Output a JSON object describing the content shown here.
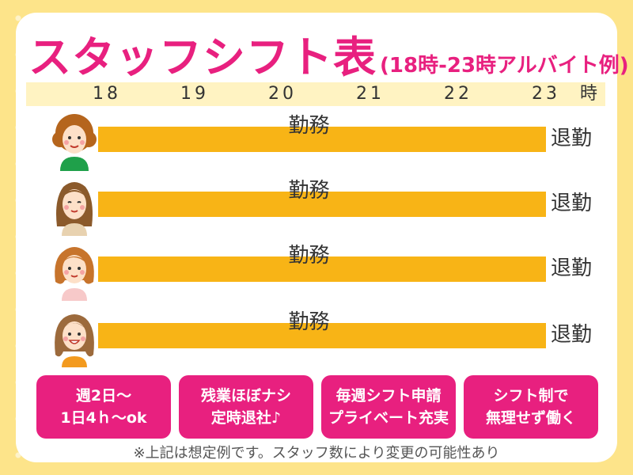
{
  "title": {
    "main": "スタッフシフト表",
    "sub": "(18時-23時アルバイト例)"
  },
  "timeline": {
    "ticks": [
      "18",
      "19",
      "20",
      "21",
      "22",
      "23"
    ],
    "unit": "時"
  },
  "rows": [
    {
      "bar_label": "勤務",
      "end_label": "退勤"
    },
    {
      "bar_label": "勤務",
      "end_label": "退勤"
    },
    {
      "bar_label": "勤務",
      "end_label": "退勤"
    },
    {
      "bar_label": "勤務",
      "end_label": "退勤"
    }
  ],
  "badges": [
    {
      "line1": "週2日〜",
      "line2": "1日4ｈ〜ok"
    },
    {
      "line1": "残業ほぼナシ",
      "line2": "定時退社♪"
    },
    {
      "line1": "毎週シフト申請",
      "line2": "プライベート充実"
    },
    {
      "line1": "シフト制で",
      "line2": "無理せず働く"
    }
  ],
  "note": "※上記は想定例です。スタッフ数により変更の可能性あり",
  "colors": {
    "accent": "#e8207f",
    "bar": "#f8b416",
    "background": "#fde48a"
  }
}
